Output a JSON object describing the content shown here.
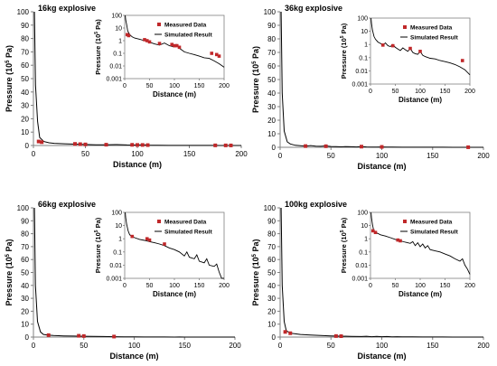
{
  "chart_data": [
    {
      "type": "scatter",
      "title": "16kg explosive",
      "xlabel": "Distance (m)",
      "ylabel_main": "Pressure (10",
      "ylabel_sup": "5",
      "ylabel_tail": " Pa)",
      "xlim": [
        0,
        200
      ],
      "ylim": [
        0,
        100
      ],
      "xticks": [
        "0",
        "50",
        "100",
        "150",
        "200"
      ],
      "yticks": [
        "0",
        "10",
        "20",
        "30",
        "40",
        "50",
        "60",
        "70",
        "80",
        "90",
        "100"
      ],
      "legend": [
        "Measured Data",
        "Simulated Result"
      ],
      "measured": [
        [
          5,
          3
        ],
        [
          8,
          2.5
        ],
        [
          40,
          1.2
        ],
        [
          45,
          1.0
        ],
        [
          50,
          0.8
        ],
        [
          70,
          0.6
        ],
        [
          95,
          0.5
        ],
        [
          100,
          0.4
        ],
        [
          105,
          0.4
        ],
        [
          110,
          0.3
        ],
        [
          175,
          0.1
        ],
        [
          185,
          0.08
        ],
        [
          190,
          0.06
        ]
      ],
      "simulated": [
        [
          1,
          100
        ],
        [
          2,
          45
        ],
        [
          4,
          18
        ],
        [
          6,
          6
        ],
        [
          10,
          3
        ],
        [
          15,
          2
        ],
        [
          20,
          1.6
        ],
        [
          30,
          1.3
        ],
        [
          40,
          1.0
        ],
        [
          50,
          0.75
        ],
        [
          60,
          0.55
        ],
        [
          70,
          0.45
        ],
        [
          80,
          0.65
        ],
        [
          90,
          0.4
        ],
        [
          100,
          0.32
        ],
        [
          105,
          0.5
        ],
        [
          110,
          0.25
        ],
        [
          115,
          0.18
        ],
        [
          120,
          0.13
        ],
        [
          130,
          0.1
        ],
        [
          140,
          0.08
        ],
        [
          150,
          0.06
        ],
        [
          160,
          0.045
        ],
        [
          170,
          0.04
        ],
        [
          180,
          0.025
        ],
        [
          190,
          0.015
        ],
        [
          200,
          0.008
        ]
      ],
      "inset": {
        "xlim": [
          0,
          200
        ],
        "ylim_log": [
          0.001,
          100
        ],
        "xticks": [
          "0",
          "50",
          "100",
          "150",
          "200"
        ],
        "yticks": [
          "0.001",
          "0.01",
          "0.1",
          "1",
          "10",
          "100"
        ],
        "ylabel": "Pressure (10",
        "ylabel_sup": "5",
        "ylabel_tail": " Pa)"
      }
    },
    {
      "type": "scatter",
      "title": "36kg explosive",
      "xlabel": "Distance (m)",
      "ylabel_main": "Pressure (10",
      "ylabel_sup": "5",
      "ylabel_tail": " Pa)",
      "xlim": [
        0,
        200
      ],
      "ylim": [
        0,
        100
      ],
      "xticks": [
        "0",
        "50",
        "100",
        "150",
        "200"
      ],
      "yticks": [
        "0",
        "10",
        "20",
        "30",
        "40",
        "50",
        "60",
        "70",
        "80",
        "90",
        "100"
      ],
      "legend": [
        "Measured Data",
        "Simulated Result"
      ],
      "measured": [
        [
          25,
          0.9
        ],
        [
          45,
          0.8
        ],
        [
          80,
          0.5
        ],
        [
          100,
          0.3
        ],
        [
          185,
          0.06
        ]
      ],
      "simulated": [
        [
          1,
          100
        ],
        [
          2,
          40
        ],
        [
          4,
          12
        ],
        [
          7,
          4
        ],
        [
          10,
          2.5
        ],
        [
          15,
          1.5
        ],
        [
          20,
          1.2
        ],
        [
          25,
          0.9
        ],
        [
          30,
          1.3
        ],
        [
          35,
          0.8
        ],
        [
          40,
          0.7
        ],
        [
          45,
          1.0
        ],
        [
          50,
          0.6
        ],
        [
          55,
          0.45
        ],
        [
          60,
          0.35
        ],
        [
          65,
          0.55
        ],
        [
          70,
          0.4
        ],
        [
          75,
          0.3
        ],
        [
          80,
          0.5
        ],
        [
          85,
          0.25
        ],
        [
          90,
          0.2
        ],
        [
          95,
          0.18
        ],
        [
          100,
          0.3
        ],
        [
          105,
          0.15
        ],
        [
          110,
          0.12
        ],
        [
          120,
          0.09
        ],
        [
          130,
          0.08
        ],
        [
          140,
          0.06
        ],
        [
          150,
          0.05
        ],
        [
          160,
          0.04
        ],
        [
          170,
          0.03
        ],
        [
          180,
          0.02
        ],
        [
          190,
          0.012
        ],
        [
          200,
          0.005
        ]
      ],
      "inset": {
        "xlim": [
          0,
          200
        ],
        "ylim_log": [
          0.001,
          100
        ],
        "xticks": [
          "0",
          "50",
          "100",
          "150",
          "200"
        ],
        "yticks": [
          "0.001",
          "0.01",
          "0.1",
          "1",
          "10",
          "100"
        ],
        "ylabel": "Pressure (10",
        "ylabel_sup": "5",
        "ylabel_tail": " Pa)"
      }
    },
    {
      "type": "scatter",
      "title": "66kg explosive",
      "xlabel": "Distance (m)",
      "ylabel_main": "Pressure (10",
      "ylabel_sup": "5",
      "ylabel_tail": " Pa)",
      "xlim": [
        0,
        200
      ],
      "ylim": [
        0,
        100
      ],
      "xticks": [
        "0",
        "50",
        "100",
        "150",
        "200"
      ],
      "yticks": [
        "0",
        "10",
        "20",
        "30",
        "40",
        "50",
        "60",
        "70",
        "80",
        "90",
        "100"
      ],
      "legend": [
        "Measured Data",
        "Simulated Result"
      ],
      "measured": [
        [
          15,
          1.5
        ],
        [
          45,
          1.0
        ],
        [
          50,
          0.8
        ],
        [
          80,
          0.4
        ]
      ],
      "simulated": [
        [
          1,
          100
        ],
        [
          2,
          40
        ],
        [
          4,
          12
        ],
        [
          7,
          4
        ],
        [
          10,
          2
        ],
        [
          15,
          1.5
        ],
        [
          20,
          1.2
        ],
        [
          30,
          0.9
        ],
        [
          40,
          0.75
        ],
        [
          50,
          0.6
        ],
        [
          60,
          0.5
        ],
        [
          70,
          0.4
        ],
        [
          80,
          0.3
        ],
        [
          90,
          0.2
        ],
        [
          100,
          0.15
        ],
        [
          110,
          0.1
        ],
        [
          120,
          0.05
        ],
        [
          125,
          0.1
        ],
        [
          130,
          0.04
        ],
        [
          140,
          0.03
        ],
        [
          145,
          0.06
        ],
        [
          150,
          0.02
        ],
        [
          160,
          0.015
        ],
        [
          165,
          0.03
        ],
        [
          170,
          0.01
        ],
        [
          180,
          0.008
        ],
        [
          185,
          0.012
        ],
        [
          190,
          0.003
        ],
        [
          195,
          0.001
        ],
        [
          200,
          0.0005
        ]
      ],
      "inset": {
        "xlim": [
          0,
          200
        ],
        "ylim_log": [
          0.001,
          100
        ],
        "xticks": [
          "0",
          "50",
          "100",
          "150",
          "200"
        ],
        "yticks": [
          "0.001",
          "0.01",
          "0.1",
          "1",
          "10",
          "100"
        ],
        "ylabel": "Pressure (10",
        "ylabel_sup": "5",
        "ylabel_tail": " Pa)"
      }
    },
    {
      "type": "scatter",
      "title": "100kg explosive",
      "xlabel": "Distance (m)",
      "ylabel_main": "Pressure (10",
      "ylabel_sup": "5",
      "ylabel_tail": " Pa)",
      "xlim": [
        0,
        200
      ],
      "ylim": [
        0,
        100
      ],
      "xticks": [
        "0",
        "50",
        "100",
        "150",
        "200"
      ],
      "yticks": [
        "0",
        "10",
        "20",
        "30",
        "40",
        "50",
        "60",
        "70",
        "80",
        "90",
        "100"
      ],
      "legend": [
        "Measured Data",
        "Simulated Result"
      ],
      "measured": [
        [
          5,
          4
        ],
        [
          10,
          3
        ],
        [
          55,
          0.8
        ],
        [
          60,
          0.7
        ]
      ],
      "simulated": [
        [
          1,
          100
        ],
        [
          2,
          40
        ],
        [
          4,
          12
        ],
        [
          6,
          5
        ],
        [
          10,
          3
        ],
        [
          15,
          2.5
        ],
        [
          20,
          2.0
        ],
        [
          30,
          1.6
        ],
        [
          40,
          1.2
        ],
        [
          50,
          0.9
        ],
        [
          60,
          0.7
        ],
        [
          70,
          0.55
        ],
        [
          80,
          0.45
        ],
        [
          85,
          0.6
        ],
        [
          90,
          0.3
        ],
        [
          95,
          0.5
        ],
        [
          100,
          0.25
        ],
        [
          105,
          0.4
        ],
        [
          110,
          0.2
        ],
        [
          115,
          0.3
        ],
        [
          120,
          0.15
        ],
        [
          130,
          0.12
        ],
        [
          140,
          0.1
        ],
        [
          150,
          0.07
        ],
        [
          160,
          0.05
        ],
        [
          170,
          0.03
        ],
        [
          180,
          0.02
        ],
        [
          185,
          0.03
        ],
        [
          190,
          0.01
        ],
        [
          195,
          0.005
        ],
        [
          200,
          0.002
        ]
      ],
      "inset": {
        "xlim": [
          0,
          200
        ],
        "ylim_log": [
          0.001,
          100
        ],
        "xticks": [
          "0",
          "50",
          "100",
          "150",
          "200"
        ],
        "yticks": [
          "0.001",
          "0.01",
          "0.1",
          "1",
          "10",
          "100"
        ],
        "ylabel": "Pressure (10",
        "ylabel_sup": "5",
        "ylabel_tail": " Pa)"
      }
    }
  ],
  "colors": {
    "marker": "#c0282a",
    "line": "#000000",
    "axis": "#808080",
    "text": "#000000"
  }
}
